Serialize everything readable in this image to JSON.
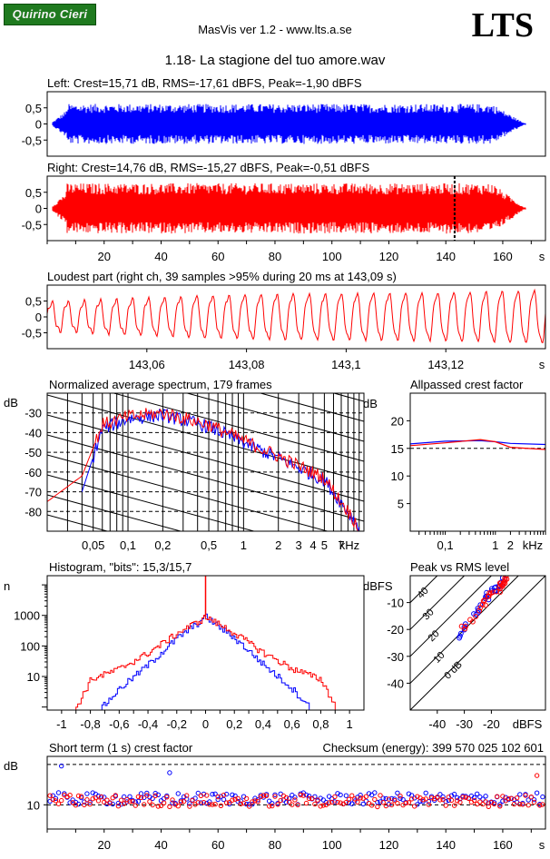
{
  "header": {
    "logo_text": "Quirino Cieri",
    "app_title": "MasVis ver 1.2 - www.lts.a.se",
    "brand": "LTS",
    "file_title": "1.18- La stagione del tuo amore.wav"
  },
  "colors": {
    "left": "#0000ff",
    "right": "#ff0000",
    "logo_bg": "#1f7a1f"
  },
  "chart_data": [
    {
      "id": "left-waveform",
      "type": "area",
      "title": "Left: Crest=15,71 dB, RMS=-17,61 dBFS, Peak=-1,90 dBFS",
      "y_ticks": [
        "0,5",
        "0",
        "-0,5"
      ],
      "ylim": [
        -1,
        1
      ],
      "xlim": [
        0,
        175
      ],
      "series": [
        {
          "color": "#0000ff",
          "envelope": "peak ~0,7, quieter first 5 s and last 10 s"
        }
      ]
    },
    {
      "id": "right-waveform",
      "type": "area",
      "title": "Right: Crest=14,76 dB, RMS=-15,27 dBFS, Peak=-0,51 dBFS",
      "y_ticks": [
        "0,5",
        "0",
        "-0,5"
      ],
      "ylim": [
        -1,
        1
      ],
      "xlim": [
        0,
        175
      ],
      "x_ticks": [
        "20",
        "40",
        "60",
        "80",
        "100",
        "120",
        "140",
        "160"
      ],
      "x_unit": "s",
      "marker_at": 143.09,
      "series": [
        {
          "color": "#ff0000",
          "envelope": "peak ~0,85"
        }
      ]
    },
    {
      "id": "loudest-part",
      "type": "line",
      "title": "Loudest part (right ch, 39 samples >95% during 20 ms at 143,09 s)",
      "y_ticks": [
        "0,5",
        "0",
        "-0,5"
      ],
      "ylim": [
        -1,
        1
      ],
      "xlim": [
        143.04,
        143.14
      ],
      "x_ticks": [
        "143,06",
        "143,08",
        "143,1",
        "143,12"
      ],
      "x_unit": "s",
      "series": [
        {
          "color": "#ff0000",
          "cycles": 31
        }
      ]
    },
    {
      "id": "spectrum",
      "type": "line",
      "title": "Normalized average spectrum, 179 frames",
      "ylabel": "dB",
      "xlabel": "kHz",
      "y_ticks": [
        "-30",
        "-40",
        "-50",
        "-60",
        "-70",
        "-80"
      ],
      "ylim": [
        -90,
        -20
      ],
      "x_ticks": [
        "0,05",
        "0,1",
        "0,2",
        "0,5",
        "1",
        "2",
        "3",
        "4",
        "5",
        "7"
      ],
      "x_log": true,
      "xlim_khz": [
        0.02,
        11
      ],
      "series": [
        {
          "color": "#0000ff",
          "x": [
            0.04,
            0.06,
            0.1,
            0.2,
            0.5,
            1,
            2,
            5,
            10
          ],
          "y": [
            -70,
            -38,
            -33,
            -31,
            -37,
            -45,
            -53,
            -64,
            -88
          ]
        },
        {
          "color": "#ff0000",
          "x": [
            0.02,
            0.04,
            0.06,
            0.1,
            0.2,
            0.5,
            1,
            2,
            5,
            10
          ],
          "y": [
            -75,
            -62,
            -36,
            -32,
            -30,
            -36,
            -44,
            -52,
            -63,
            -88
          ]
        }
      ]
    },
    {
      "id": "allpassed-crest",
      "type": "line",
      "title": "Allpassed crest factor",
      "ylabel": "dB",
      "xlabel": "kHz",
      "y_ticks": [
        "20",
        "15",
        "10",
        "5"
      ],
      "ylim": [
        0,
        25
      ],
      "x_ticks": [
        "0,1",
        "1",
        "2"
      ],
      "x_log": true,
      "series": [
        {
          "color": "#0000ff",
          "x": [
            0.02,
            0.1,
            0.5,
            1,
            2,
            10
          ],
          "y": [
            15.8,
            16.3,
            16.4,
            16.2,
            15.9,
            15.7
          ]
        },
        {
          "color": "#ff0000",
          "x": [
            0.02,
            0.1,
            0.5,
            1,
            2,
            10
          ],
          "y": [
            15.5,
            16.0,
            16.6,
            16.2,
            15.2,
            14.8
          ]
        }
      ]
    },
    {
      "id": "histogram",
      "type": "line",
      "title": "Histogram, \"bits\": 15,3/15,7",
      "ylabel": "n",
      "y_ticks": [
        "1000",
        "100",
        "10"
      ],
      "y_log": true,
      "x_ticks": [
        "-1",
        "-0,8",
        "-0,6",
        "-0,4",
        "-0,2",
        "0",
        "0,2",
        "0,4",
        "0,6",
        "0,8",
        "1"
      ],
      "xlim": [
        -1.1,
        1.1
      ],
      "series": [
        {
          "color": "#0000ff",
          "x": [
            -0.72,
            -0.6,
            -0.4,
            -0.2,
            0,
            0.2,
            0.4,
            0.6,
            0.72
          ],
          "y": [
            1,
            4,
            25,
            180,
            900,
            180,
            25,
            4,
            1
          ]
        },
        {
          "color": "#ff0000",
          "x": [
            -0.9,
            -0.8,
            -0.6,
            -0.4,
            -0.2,
            0,
            0.2,
            0.4,
            0.6,
            0.8,
            0.9
          ],
          "y": [
            1,
            8,
            18,
            60,
            260,
            900,
            260,
            60,
            18,
            8,
            1
          ]
        }
      ]
    },
    {
      "id": "peak-vs-rms",
      "type": "scatter",
      "title": "Peak vs RMS level",
      "ylabel": "dBFS",
      "xlabel": "dBFS",
      "x_ticks": [
        "-40",
        "-30",
        "-20"
      ],
      "y_ticks": [
        "-10",
        "-20",
        "-30",
        "-40"
      ],
      "xlim": [
        -50,
        0
      ],
      "ylim": [
        -50,
        0
      ],
      "diagonal_labels": [
        "40",
        "30",
        "20",
        "10",
        "0 dB"
      ],
      "series": [
        {
          "color": "#0000ff",
          "x": [
            -32,
            -29,
            -26,
            -24,
            -22,
            -21,
            -20,
            -19,
            -18,
            -17,
            -16
          ],
          "y": [
            -22,
            -19,
            -15,
            -12,
            -8,
            -7,
            -6,
            -5,
            -4,
            -3,
            -2
          ]
        },
        {
          "color": "#ff0000",
          "x": [
            -30,
            -27,
            -24,
            -22,
            -20,
            -19,
            -18,
            -17,
            -16,
            -15,
            -14
          ],
          "y": [
            -20,
            -16,
            -12,
            -10,
            -7,
            -6,
            -5,
            -4,
            -3,
            -2,
            -1
          ]
        }
      ]
    },
    {
      "id": "short-term-crest",
      "type": "scatter",
      "title": "Short term (1 s) crest factor",
      "checksum": "Checksum (energy):   399 570 025 102 601",
      "ylabel": "dB",
      "y_ticks": [
        "10"
      ],
      "x_ticks": [
        "20",
        "40",
        "60",
        "80",
        "100",
        "120",
        "140",
        "160"
      ],
      "x_unit": "s",
      "xlim": [
        0,
        175
      ],
      "series": [
        {
          "color": "#0000ff",
          "baseline": 11.5
        },
        {
          "color": "#ff0000",
          "baseline": 11.0
        }
      ]
    }
  ]
}
